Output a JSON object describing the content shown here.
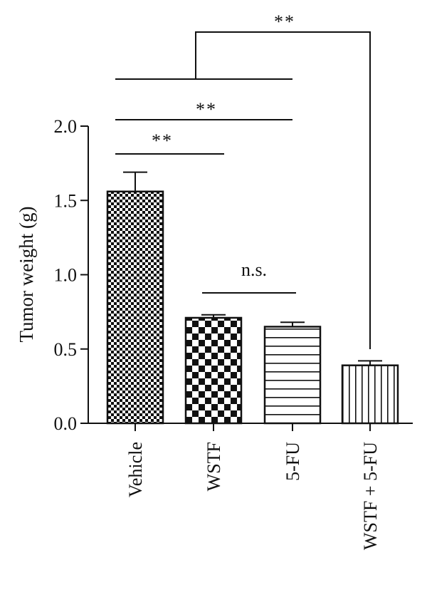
{
  "chart_data": {
    "type": "bar",
    "title": "",
    "xlabel": "",
    "ylabel": "Tumor weight (g)",
    "ylim": [
      0,
      2.0
    ],
    "yticks": [
      "0.0",
      "0.5",
      "1.0",
      "1.5",
      "2.0"
    ],
    "categories": [
      "Vehicle",
      "WSTF",
      "5-FU",
      "WSTF + 5-FU"
    ],
    "values": [
      1.56,
      0.71,
      0.65,
      0.39
    ],
    "errors": [
      0.13,
      0.02,
      0.03,
      0.03
    ],
    "patterns": [
      "fine-checker",
      "coarse-checker",
      "horizontal-lines",
      "vertical-lines"
    ],
    "significance": [
      {
        "from": 0,
        "to": 1,
        "label": "**"
      },
      {
        "from": 0,
        "to": 2,
        "label": "**"
      },
      {
        "from_span": [
          0,
          2
        ],
        "to": 3,
        "label": "**"
      },
      {
        "from": 1,
        "to": 2,
        "label": "n.s."
      }
    ],
    "grid": false,
    "legend": "none",
    "colors": {
      "ink": "#111111",
      "background": "#ffffff"
    }
  }
}
